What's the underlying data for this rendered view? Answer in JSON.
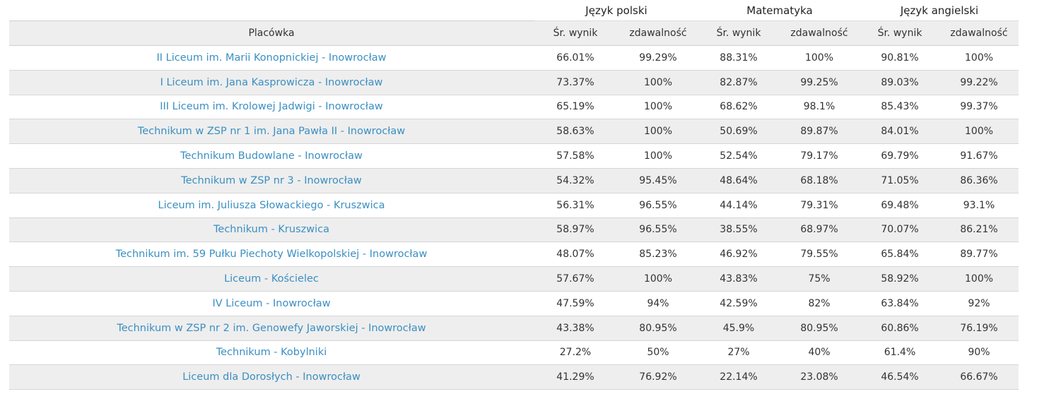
{
  "table": {
    "subject_groups": [
      "Język polski",
      "Matematyka",
      "Język angielski"
    ],
    "headers": [
      "Placówka",
      "Śr. wynik",
      "zdawalność",
      "Śr. wynik",
      "zdawalność",
      "Śr. wynik",
      "zdawalność"
    ],
    "rows": [
      {
        "name": "II Liceum im. Marii Konopnickiej - Inowrocław",
        "pl_avg": "66.01%",
        "pl_pass": "99.29%",
        "mat_avg": "88.31%",
        "mat_pass": "100%",
        "en_avg": "90.81%",
        "en_pass": "100%"
      },
      {
        "name": "I Liceum im. Jana Kasprowicza - Inowrocław",
        "pl_avg": "73.37%",
        "pl_pass": "100%",
        "mat_avg": "82.87%",
        "mat_pass": "99.25%",
        "en_avg": "89.03%",
        "en_pass": "99.22%"
      },
      {
        "name": "III Liceum im. Krolowej Jadwigi - Inowrocław",
        "pl_avg": "65.19%",
        "pl_pass": "100%",
        "mat_avg": "68.62%",
        "mat_pass": "98.1%",
        "en_avg": "85.43%",
        "en_pass": "99.37%"
      },
      {
        "name": "Technikum w ZSP nr 1 im. Jana Pawła II - Inowrocław",
        "pl_avg": "58.63%",
        "pl_pass": "100%",
        "mat_avg": "50.69%",
        "mat_pass": "89.87%",
        "en_avg": "84.01%",
        "en_pass": "100%"
      },
      {
        "name": "Technikum Budowlane - Inowrocław",
        "pl_avg": "57.58%",
        "pl_pass": "100%",
        "mat_avg": "52.54%",
        "mat_pass": "79.17%",
        "en_avg": "69.79%",
        "en_pass": "91.67%"
      },
      {
        "name": "Technikum w ZSP nr 3 - Inowrocław",
        "pl_avg": "54.32%",
        "pl_pass": "95.45%",
        "mat_avg": "48.64%",
        "mat_pass": "68.18%",
        "en_avg": "71.05%",
        "en_pass": "86.36%"
      },
      {
        "name": "Liceum im. Juliusza Słowackiego - Kruszwica",
        "pl_avg": "56.31%",
        "pl_pass": "96.55%",
        "mat_avg": "44.14%",
        "mat_pass": "79.31%",
        "en_avg": "69.48%",
        "en_pass": "93.1%"
      },
      {
        "name": "Technikum - Kruszwica",
        "pl_avg": "58.97%",
        "pl_pass": "96.55%",
        "mat_avg": "38.55%",
        "mat_pass": "68.97%",
        "en_avg": "70.07%",
        "en_pass": "86.21%"
      },
      {
        "name": "Technikum im. 59 Pułku Piechoty Wielkopolskiej - Inowrocław",
        "pl_avg": "48.07%",
        "pl_pass": "85.23%",
        "mat_avg": "46.92%",
        "mat_pass": "79.55%",
        "en_avg": "65.84%",
        "en_pass": "89.77%"
      },
      {
        "name": "Liceum - Kościelec",
        "pl_avg": "57.67%",
        "pl_pass": "100%",
        "mat_avg": "43.83%",
        "mat_pass": "75%",
        "en_avg": "58.92%",
        "en_pass": "100%"
      },
      {
        "name": "IV Liceum - Inowrocław",
        "pl_avg": "47.59%",
        "pl_pass": "94%",
        "mat_avg": "42.59%",
        "mat_pass": "82%",
        "en_avg": "63.84%",
        "en_pass": "92%"
      },
      {
        "name": "Technikum w ZSP nr 2 im. Genowefy Jaworskiej - Inowrocław",
        "pl_avg": "43.38%",
        "pl_pass": "80.95%",
        "mat_avg": "45.9%",
        "mat_pass": "80.95%",
        "en_avg": "60.86%",
        "en_pass": "76.19%"
      },
      {
        "name": "Technikum - Kobylniki",
        "pl_avg": "27.2%",
        "pl_pass": "50%",
        "mat_avg": "27%",
        "mat_pass": "40%",
        "en_avg": "61.4%",
        "en_pass": "90%"
      },
      {
        "name": "Liceum dla Dorosłych - Inowrocław",
        "pl_avg": "41.29%",
        "pl_pass": "76.92%",
        "mat_avg": "22.14%",
        "mat_pass": "23.08%",
        "en_avg": "46.54%",
        "en_pass": "66.67%"
      }
    ]
  },
  "colors": {
    "link": "#3b8fc2",
    "stripe": "#eeeeee",
    "text": "#333333"
  }
}
